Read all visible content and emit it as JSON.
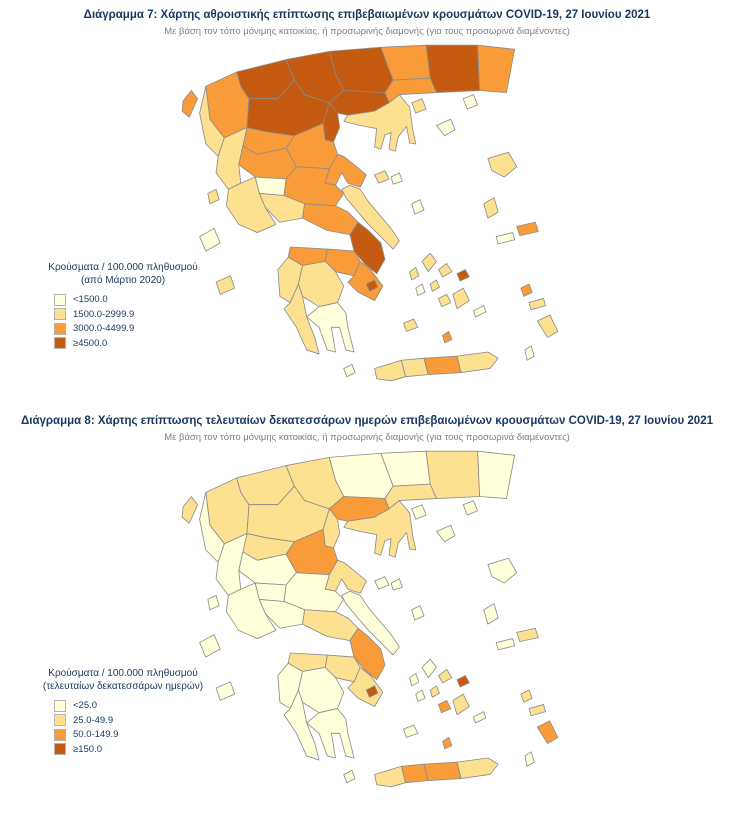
{
  "page": {
    "background": "#ffffff"
  },
  "palette": [
    "#FFFFD9",
    "#FEE091",
    "#F99B38",
    "#C55A11"
  ],
  "figures": [
    {
      "title": "Διάγραμμα 7: Χάρτης αθροιστικής επίπτωσης επιβεβαιωμένων κρουσμάτων COVID-19, 27 Ιουνίου 2021",
      "subtitle": "Με βάση τον τόπο μόνιμης κατοικίας, ή προσωρινής διαμονής (για τους προσωρινά διαμένοντες)",
      "legend": {
        "title": "Κρούσματα / 100.000 πληθυσμού",
        "qualifier": "(από Μάρτιο 2020)",
        "classes": [
          "<1500.0",
          "1500.0-2999.9",
          "3000.0-4499.9",
          "≥4500.0"
        ]
      }
    },
    {
      "title": "Διάγραμμα 8: Χάρτης επίπτωσης τελευταίων δεκατεσσάρων ημερών επιβεβαιωμένων κρουσμάτων COVID-19, 27 Ιουνίου 2021",
      "subtitle": "Με βάση τον τόπο μόνιμης κατοικίας, ή προσωρινής διαμονής (για τους προσωρινά διαμένοντες)",
      "legend": {
        "title": "Κρούσματα / 100.000 πληθυσμού",
        "qualifier": "(τελευταίων δεκατεσσάρων ημερών)",
        "classes": [
          "<25.0",
          "25.0-49.9",
          "50.0-149.9",
          "≥150.0"
        ]
      }
    }
  ],
  "chart_data": [
    {
      "type": "choropleth",
      "title": "Χάρτης αθροιστικής επίπτωσης επιβεβαιωμένων κρουσμάτων COVID-19, 27 Ιουνίου 2021",
      "classes": [
        "<1500.0",
        "1500.0-2999.9",
        "3000.0-4499.9",
        "≥4500.0"
      ],
      "class_colors": [
        "#FFFFD9",
        "#FEE091",
        "#F99B38",
        "#C55A11"
      ],
      "legend_position": "left-bottom",
      "regions": {
        "evros": 2,
        "xanthi_rodopi": 3,
        "drama": 2,
        "kavala": 2,
        "kilkis_serres": 3,
        "pella_imathia": 3,
        "kastoria_florina": 3,
        "ioannina": 2,
        "grevena_kozani": 3,
        "thessaloniki": 3,
        "chalkidiki": 1,
        "pieria": 3,
        "larissa": 2,
        "trikala": 2,
        "karditsa": 2,
        "magnesia": 2,
        "thesprotia": 1,
        "preveza_arta": 1,
        "aitoloakarnania": 1,
        "evrytania": 0,
        "fthiotida": 2,
        "fokida": 1,
        "viotia": 2,
        "attica": 3,
        "evia": 1,
        "korinthia": 2,
        "achaia": 2,
        "ileia": 1,
        "arkadia": 1,
        "argolida": 2,
        "messinia": 1,
        "lakonia": 0,
        "chania": 1,
        "rethymno": 1,
        "heraklion": 2,
        "lasithi": 1,
        "kerkyra": 2,
        "lefkada": 1,
        "kefalonia": 0,
        "zakynthos": 1,
        "kythira": 0,
        "thasos": 1,
        "samothraki": 0,
        "limnos": 0,
        "lesvos": 1,
        "chios": 1,
        "samos": 2,
        "ikaria": 0,
        "sporades": 1,
        "alonnisos": 0,
        "skyros": 0,
        "andros": 1,
        "tinos": 1,
        "mykonos": 3,
        "syros": 1,
        "kea": 1,
        "kythnos": 0,
        "paros": 1,
        "naxos": 1,
        "milos": 1,
        "santorini": 2,
        "amorgos": 0,
        "kalymnos": 2,
        "kos": 1,
        "rhodes": 1,
        "karpathos": 0,
        "saronic": 3
      }
    },
    {
      "type": "choropleth",
      "title": "Χάρτης επίπτωσης τελευταίων δεκατεσσάρων ημερών επιβεβαιωμένων κρουσμάτων COVID-19, 27 Ιουνίου 2021",
      "classes": [
        "<25.0",
        "25.0-49.9",
        "50.0-149.9",
        "≥150.0"
      ],
      "class_colors": [
        "#FFFFD9",
        "#FEE091",
        "#F99B38",
        "#C55A11"
      ],
      "legend_position": "left-bottom",
      "regions": {
        "evros": 0,
        "xanthi_rodopi": 1,
        "drama": 0,
        "kavala": 1,
        "kilkis_serres": 0,
        "pella_imathia": 1,
        "kastoria_florina": 1,
        "ioannina": 1,
        "grevena_kozani": 1,
        "thessaloniki": 2,
        "chalkidiki": 1,
        "pieria": 1,
        "larissa": 2,
        "trikala": 1,
        "karditsa": 0,
        "magnesia": 1,
        "thesprotia": 0,
        "preveza_arta": 0,
        "aitoloakarnania": 0,
        "evrytania": 0,
        "fthiotida": 0,
        "fokida": 0,
        "viotia": 1,
        "attica": 2,
        "evia": 0,
        "korinthia": 1,
        "achaia": 1,
        "ileia": 0,
        "arkadia": 0,
        "argolida": 1,
        "messinia": 0,
        "lakonia": 0,
        "chania": 1,
        "rethymno": 2,
        "heraklion": 2,
        "lasithi": 1,
        "kerkyra": 1,
        "lefkada": 0,
        "kefalonia": 0,
        "zakynthos": 0,
        "kythira": 0,
        "thasos": 0,
        "samothraki": 0,
        "limnos": 0,
        "lesvos": 0,
        "chios": 0,
        "samos": 1,
        "ikaria": 0,
        "sporades": 0,
        "alonnisos": 0,
        "skyros": 0,
        "andros": 0,
        "tinos": 1,
        "mykonos": 3,
        "syros": 1,
        "kea": 0,
        "kythnos": 0,
        "paros": 2,
        "naxos": 1,
        "milos": 0,
        "santorini": 2,
        "amorgos": 0,
        "kalymnos": 1,
        "kos": 1,
        "rhodes": 2,
        "karpathos": 0,
        "saronic": 3
      }
    }
  ]
}
